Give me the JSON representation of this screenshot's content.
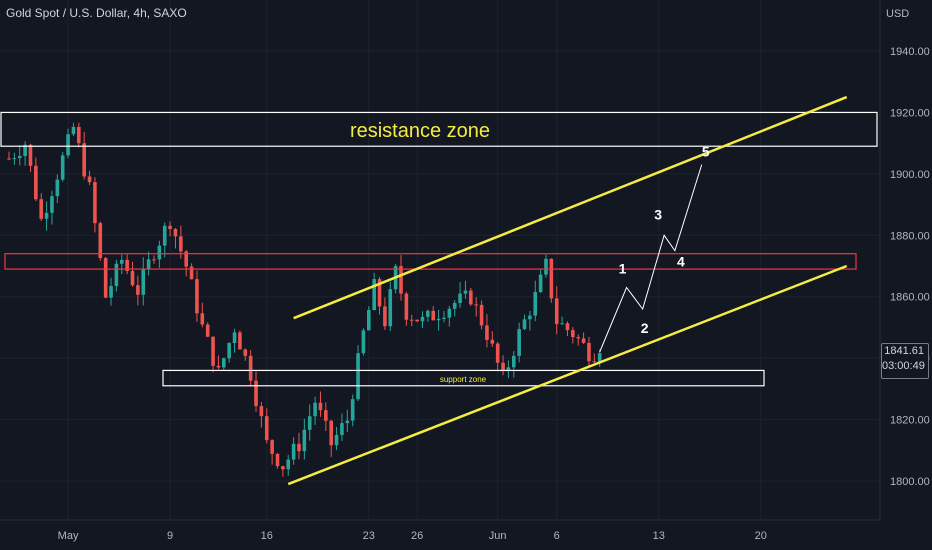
{
  "header": {
    "title": "Gold Spot / U.S. Dollar, 4h, SAXO",
    "currency": "USD"
  },
  "price_label": {
    "price": "1841.61",
    "countdown": "03:00:49"
  },
  "annotations": {
    "resistance": "resistance zone",
    "support": "support zone",
    "waves": [
      "1",
      "2",
      "3",
      "4",
      "5"
    ]
  },
  "colors": {
    "background": "#131722",
    "up": "#26a69a",
    "down": "#ef5350",
    "channel": "#f5ec42",
    "zone_border": "#ffffff",
    "red_zone": "#f23645"
  },
  "chart_data": {
    "type": "candlestick",
    "title": "Gold Spot / U.S. Dollar, 4h, SAXO",
    "ylabel": "USD",
    "ylim": [
      1786,
      1960
    ],
    "y_ticks": [
      "1940.00",
      "1920.00",
      "1900.00",
      "1880.00",
      "1860.00",
      "1840.00",
      "1820.00",
      "1800.00"
    ],
    "x_ticks": [
      "May",
      "9",
      "16",
      "23",
      "26",
      "Jun",
      "6",
      "13",
      "20"
    ],
    "x_tick_bars": [
      11,
      30,
      48,
      67,
      76,
      91,
      102,
      121,
      140
    ],
    "close_path": [
      [
        0,
        1905
      ],
      [
        3,
        1910
      ],
      [
        6,
        1885
      ],
      [
        9,
        1900
      ],
      [
        12,
        1915
      ],
      [
        15,
        1895
      ],
      [
        18,
        1860
      ],
      [
        21,
        1872
      ],
      [
        24,
        1862
      ],
      [
        27,
        1875
      ],
      [
        30,
        1885
      ],
      [
        33,
        1870
      ],
      [
        36,
        1850
      ],
      [
        39,
        1835
      ],
      [
        42,
        1850
      ],
      [
        45,
        1835
      ],
      [
        48,
        1812
      ],
      [
        51,
        1805
      ],
      [
        54,
        1812
      ],
      [
        57,
        1826
      ],
      [
        60,
        1812
      ],
      [
        63,
        1820
      ],
      [
        66,
        1848
      ],
      [
        68,
        1863
      ],
      [
        70,
        1852
      ],
      [
        72,
        1868
      ],
      [
        74,
        1855
      ],
      [
        77,
        1852
      ],
      [
        80,
        1855
      ],
      [
        83,
        1858
      ],
      [
        86,
        1860
      ],
      [
        89,
        1848
      ],
      [
        92,
        1833
      ],
      [
        95,
        1848
      ],
      [
        98,
        1860
      ],
      [
        100,
        1870
      ],
      [
        102,
        1852
      ],
      [
        105,
        1848
      ],
      [
        108,
        1842
      ],
      [
        110,
        1841.61
      ]
    ],
    "resistance_zone": [
      1909,
      1920
    ],
    "red_zone": [
      1869,
      1874
    ],
    "support_zone": [
      1831,
      1836
    ],
    "channel_upper": {
      "x": [
        53,
        156
      ],
      "y": [
        1853,
        1925
      ]
    },
    "channel_lower": {
      "x": [
        52,
        156
      ],
      "y": [
        1799,
        1870
      ]
    },
    "wave_path": [
      [
        110,
        1842
      ],
      [
        115,
        1863
      ],
      [
        118,
        1856
      ],
      [
        122,
        1880
      ],
      [
        124,
        1875
      ],
      [
        129,
        1903
      ]
    ],
    "last_price": 1841.61
  }
}
